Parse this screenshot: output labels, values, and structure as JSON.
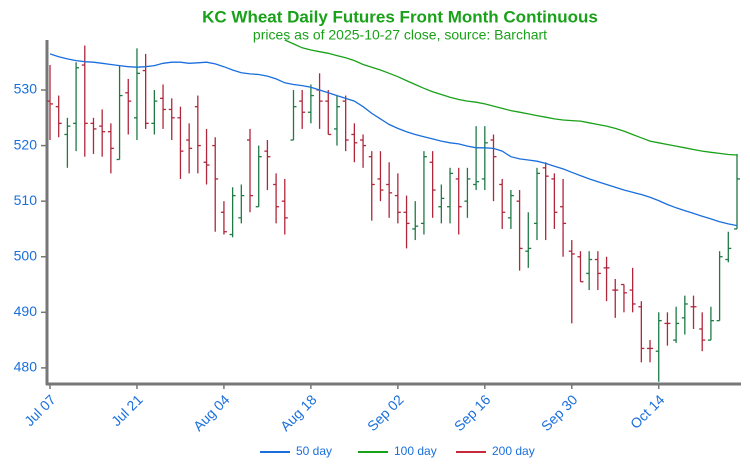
{
  "chart_data": {
    "type": "ohlc",
    "title": "KC Wheat Daily Futures Front Month Continuous",
    "subtitle": "prices as of 2025-10-27 close, source: Barchart",
    "categories": [
      "Jul 07",
      null,
      null,
      null,
      null,
      null,
      null,
      null,
      null,
      null,
      "Jul 21",
      null,
      null,
      null,
      null,
      null,
      null,
      null,
      null,
      null,
      "Aug 04",
      null,
      null,
      null,
      null,
      null,
      null,
      null,
      null,
      null,
      "Aug 18",
      null,
      null,
      null,
      null,
      null,
      null,
      null,
      null,
      null,
      "Sep 02",
      null,
      null,
      null,
      null,
      null,
      null,
      null,
      null,
      null,
      "Sep 16",
      null,
      null,
      null,
      null,
      null,
      null,
      null,
      null,
      null,
      "Sep 30",
      null,
      null,
      null,
      null,
      null,
      null,
      null,
      null,
      null,
      "Oct 14",
      null,
      null,
      null,
      null,
      null,
      null,
      null,
      null,
      null
    ],
    "open": [
      528,
      527,
      522,
      524,
      534.5,
      524,
      523.5,
      522.5,
      517.5,
      529.5,
      525,
      533.5,
      524,
      528.5,
      526.5,
      525,
      521,
      527,
      517,
      520,
      508,
      504,
      507,
      521,
      509,
      519,
      513,
      510,
      521,
      528,
      526,
      530,
      528,
      523,
      528,
      522,
      521,
      518,
      514,
      513,
      511,
      508,
      505,
      506,
      517,
      509,
      509,
      514,
      510,
      513,
      514,
      521,
      513,
      507,
      510,
      501,
      506,
      516,
      514,
      509,
      501,
      500,
      497,
      499.5,
      498,
      494,
      495,
      494,
      491,
      483.5,
      483,
      488,
      485,
      489,
      491,
      487,
      485,
      488.5,
      499.5,
      505
    ],
    "high": [
      534.5,
      529,
      525,
      535,
      538,
      525,
      526.5,
      524,
      534.5,
      532,
      537.5,
      536.5,
      530,
      531,
      528.5,
      527,
      524,
      529,
      523,
      521.5,
      510,
      512.5,
      513,
      523,
      520,
      521,
      515,
      514,
      530,
      530,
      531,
      533,
      530,
      529,
      529,
      524,
      522,
      519,
      519,
      517,
      515,
      511,
      510,
      519,
      519,
      513,
      516,
      516,
      516,
      523.5,
      523.5,
      522,
      514,
      512,
      512,
      508,
      516,
      517,
      515,
      514,
      503,
      501,
      501,
      501,
      500,
      496,
      495,
      498,
      492,
      485,
      490,
      490,
      491,
      493,
      493,
      490,
      491,
      501,
      504.5,
      518.5
    ],
    "low": [
      521,
      521.5,
      516,
      519,
      518,
      518.5,
      518,
      515,
      517.5,
      522,
      521,
      523,
      522,
      523,
      521,
      514,
      515,
      515,
      513,
      504.5,
      504,
      503.5,
      506,
      508,
      509,
      512,
      506,
      504,
      521,
      523,
      524,
      523,
      522,
      520,
      519,
      517,
      516,
      506.5,
      510,
      507,
      506,
      501.5,
      503,
      504,
      507,
      506,
      506,
      504,
      507,
      512,
      512,
      510,
      505,
      505,
      497.5,
      498,
      503,
      503,
      505,
      500,
      488,
      495.5,
      494,
      494,
      492,
      489,
      490,
      490,
      481,
      481,
      477.5,
      484,
      484.5,
      486,
      487,
      483,
      485,
      488.5,
      499,
      505
    ],
    "close": [
      527.5,
      524,
      523.5,
      534,
      524,
      523,
      522.5,
      519.5,
      529,
      528,
      533,
      524,
      528,
      526.5,
      525,
      519,
      519.5,
      520,
      516.5,
      514,
      504.5,
      511,
      511,
      511,
      518,
      518,
      509,
      507,
      527,
      526,
      529,
      528,
      522,
      527,
      521,
      520.5,
      520,
      513,
      512,
      511.5,
      508,
      506,
      505.5,
      518,
      512,
      510.5,
      515,
      509,
      514,
      513.5,
      520.5,
      518,
      508,
      511,
      501.5,
      501.5,
      515,
      514.5,
      508,
      506,
      500.5,
      495.5,
      499.5,
      497,
      498,
      494,
      493.5,
      491.5,
      483.5,
      483.5,
      488.5,
      488,
      488,
      491.5,
      491,
      485,
      488.5,
      500,
      501.5,
      514
    ],
    "up_color": "#1e7a45",
    "down_color": "#b0263b",
    "series": [
      {
        "name": "50 day",
        "color": "#1a6fdc",
        "values": [
          536.5,
          536,
          535.6,
          535.3,
          535.1,
          535,
          534.8,
          534.6,
          534.4,
          534.2,
          534.1,
          534.2,
          534.4,
          534.8,
          535,
          535,
          534.8,
          534.9,
          535,
          534.7,
          534.2,
          533.6,
          533.1,
          532.9,
          532.8,
          532.5,
          532,
          531.3,
          531,
          530.8,
          530.5,
          530,
          529.5,
          529,
          528.5,
          528,
          527,
          525.8,
          524.8,
          523.8,
          523.1,
          522.5,
          522,
          521.6,
          521.2,
          520.8,
          520.5,
          520.3,
          519.9,
          519.6,
          519.6,
          519.5,
          519,
          518,
          517.6,
          517.4,
          517.2,
          516.8,
          516.3,
          515.8,
          515.2,
          514.6,
          514,
          513.5,
          513,
          512.5,
          512,
          511.6,
          511.2,
          510.7,
          510.1,
          509.4,
          508.8,
          508.3,
          507.8,
          507.3,
          506.8,
          506.3,
          505.9,
          505.6
        ]
      },
      {
        "name": "100 day",
        "color": "#1aa11a",
        "values": [
          null,
          null,
          null,
          null,
          null,
          null,
          null,
          null,
          null,
          null,
          null,
          null,
          null,
          null,
          null,
          null,
          null,
          null,
          null,
          null,
          null,
          null,
          null,
          null,
          null,
          null,
          null,
          539,
          538.3,
          537.6,
          537.2,
          536.9,
          536.6,
          536.2,
          535.8,
          535.3,
          534.6,
          534.1,
          533.6,
          533,
          532.4,
          531.7,
          531,
          530.3,
          529.7,
          529.2,
          528.7,
          528.3,
          528,
          527.8,
          527.5,
          527.1,
          526.7,
          526.3,
          526,
          525.7,
          525.4,
          525.1,
          524.8,
          524.6,
          524.5,
          524.4,
          524.1,
          523.8,
          523.5,
          523.1,
          522.6,
          522,
          521.4,
          520.8,
          520.5,
          520.2,
          519.9,
          519.6,
          519.3,
          519,
          518.8,
          518.6,
          518.4,
          518.3
        ]
      },
      {
        "name": "200 day",
        "color": "#c8283c",
        "values": [
          null,
          null,
          null,
          null,
          null,
          null,
          null,
          null,
          null,
          null,
          null,
          null,
          null,
          null,
          null,
          null,
          null,
          null,
          null,
          null,
          null,
          null,
          null,
          null,
          null,
          null,
          null,
          null,
          null,
          null,
          null,
          null,
          null,
          null,
          null,
          null,
          null,
          null,
          null,
          null,
          null,
          null,
          null,
          null,
          null,
          null,
          null,
          null,
          null,
          null,
          null,
          null,
          null,
          null,
          null,
          null,
          null,
          null,
          null,
          null,
          null,
          null,
          null,
          null,
          null,
          null,
          null,
          null,
          null,
          null,
          null,
          null,
          null,
          null,
          null,
          null,
          null,
          null,
          null,
          null
        ]
      }
    ],
    "ylim": [
      477.1,
      539
    ],
    "yticks": [
      480,
      490,
      500,
      510,
      520,
      530
    ]
  }
}
